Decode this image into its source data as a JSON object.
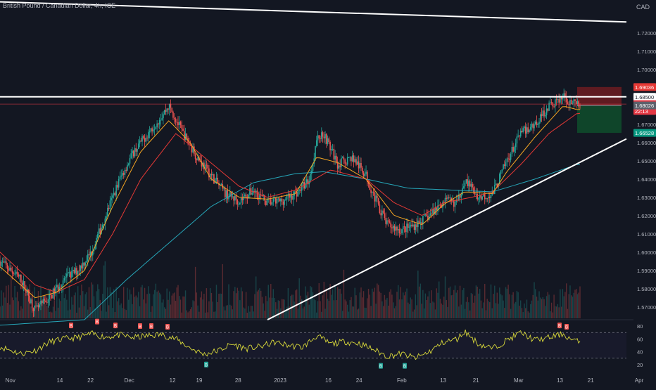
{
  "header": {
    "symbol_title": "British Pound / Canadian Dollar, 4h, ICE",
    "currency": "CAD"
  },
  "colors": {
    "background": "#131722",
    "text": "#b2b5be",
    "grid": "#1e222d",
    "up_candle": "#26a69a",
    "down_candle": "#ef5350",
    "ema_fast": "#f5a623",
    "ema_mid": "#e53935",
    "ema_slow": "#26a6b8",
    "trendline": "#ffffff",
    "rsi": "#d9d93a",
    "stop_zone": "#7a1e22",
    "target_zone": "#0f4d2c"
  },
  "chart_data": [
    {
      "type": "candlestick",
      "title": "British Pound / Canadian Dollar, 4h, ICE",
      "y_unit": "CAD",
      "ylim": [
        1.563,
        1.738
      ],
      "x_labels": [
        "Nov",
        "14",
        "22",
        "Dec",
        "12",
        "19",
        "28",
        "2023",
        "16",
        "24",
        "Feb",
        "13",
        "21",
        "Mar",
        "13",
        "21",
        "Apr"
      ],
      "y_ticks": [
        "1.57000",
        "1.58000",
        "1.59000",
        "1.60000",
        "1.61000",
        "1.62000",
        "1.63000",
        "1.64000",
        "1.65000",
        "1.66000",
        "1.67000",
        "1.68000",
        "1.69000",
        "1.70000",
        "1.71000",
        "1.72000",
        "1.73000"
      ],
      "price_labels": [
        {
          "text": "1.69036",
          "value": 1.69036,
          "color": "#e53935"
        },
        {
          "text": "1.68500",
          "value": 1.685,
          "color": "#ffffff"
        },
        {
          "text": "1.68104",
          "value": 1.68104,
          "color": "#e53945"
        },
        {
          "text": "22:13",
          "value": 1.6773,
          "color": "#e53945"
        },
        {
          "text": "1.68026",
          "value": 1.68026,
          "color": "#5d606b"
        },
        {
          "text": "1.66528",
          "value": 1.66528,
          "color": "#089981"
        }
      ],
      "price_anchors": [
        [
          0,
          1.595
        ],
        [
          3,
          1.585
        ],
        [
          5,
          1.568
        ],
        [
          7,
          1.575
        ],
        [
          9,
          1.585
        ],
        [
          11,
          1.59
        ],
        [
          13,
          1.6
        ],
        [
          15,
          1.62
        ],
        [
          17,
          1.64
        ],
        [
          19,
          1.655
        ],
        [
          21,
          1.665
        ],
        [
          23,
          1.675
        ],
        [
          24,
          1.68
        ],
        [
          26,
          1.665
        ],
        [
          28,
          1.652
        ],
        [
          30,
          1.642
        ],
        [
          32,
          1.632
        ],
        [
          34,
          1.628
        ],
        [
          36,
          1.634
        ],
        [
          38,
          1.627
        ],
        [
          40,
          1.628
        ],
        [
          42,
          1.632
        ],
        [
          44,
          1.64
        ],
        [
          45,
          1.662
        ],
        [
          46,
          1.665
        ],
        [
          48,
          1.648
        ],
        [
          50,
          1.652
        ],
        [
          52,
          1.642
        ],
        [
          53,
          1.632
        ],
        [
          55,
          1.615
        ],
        [
          57,
          1.612
        ],
        [
          59,
          1.615
        ],
        [
          61,
          1.62
        ],
        [
          63,
          1.628
        ],
        [
          65,
          1.627
        ],
        [
          66,
          1.64
        ],
        [
          68,
          1.63
        ],
        [
          70,
          1.632
        ],
        [
          72,
          1.65
        ],
        [
          74,
          1.665
        ],
        [
          76,
          1.67
        ],
        [
          78,
          1.68
        ],
        [
          80,
          1.685
        ],
        [
          82,
          1.68
        ]
      ],
      "ema_fast_anchors": [
        [
          0,
          1.592
        ],
        [
          5,
          1.575
        ],
        [
          8,
          1.578
        ],
        [
          12,
          1.59
        ],
        [
          16,
          1.625
        ],
        [
          20,
          1.655
        ],
        [
          24,
          1.672
        ],
        [
          27,
          1.66
        ],
        [
          30,
          1.64
        ],
        [
          34,
          1.63
        ],
        [
          38,
          1.629
        ],
        [
          42,
          1.632
        ],
        [
          45,
          1.652
        ],
        [
          48,
          1.649
        ],
        [
          52,
          1.64
        ],
        [
          56,
          1.62
        ],
        [
          60,
          1.615
        ],
        [
          63,
          1.626
        ],
        [
          66,
          1.633
        ],
        [
          70,
          1.632
        ],
        [
          72,
          1.644
        ],
        [
          76,
          1.663
        ],
        [
          80,
          1.68
        ],
        [
          82,
          1.678
        ]
      ],
      "ema_mid_anchors": [
        [
          0,
          1.6
        ],
        [
          5,
          1.582
        ],
        [
          8,
          1.578
        ],
        [
          12,
          1.585
        ],
        [
          16,
          1.61
        ],
        [
          20,
          1.64
        ],
        [
          25,
          1.665
        ],
        [
          29,
          1.652
        ],
        [
          34,
          1.636
        ],
        [
          38,
          1.63
        ],
        [
          42,
          1.634
        ],
        [
          47,
          1.645
        ],
        [
          52,
          1.64
        ],
        [
          56,
          1.627
        ],
        [
          60,
          1.62
        ],
        [
          63,
          1.627
        ],
        [
          67,
          1.63
        ],
        [
          70,
          1.633
        ],
        [
          74,
          1.648
        ],
        [
          78,
          1.665
        ],
        [
          82,
          1.676
        ]
      ],
      "ema_slow_anchors": [
        [
          0,
          1.56
        ],
        [
          12,
          1.563
        ],
        [
          18,
          1.585
        ],
        [
          24,
          1.605
        ],
        [
          30,
          1.625
        ],
        [
          36,
          1.638
        ],
        [
          42,
          1.643
        ],
        [
          46,
          1.644
        ],
        [
          52,
          1.64
        ],
        [
          58,
          1.635
        ],
        [
          64,
          1.634
        ],
        [
          70,
          1.633
        ],
        [
          76,
          1.64
        ],
        [
          82,
          1.648
        ]
      ],
      "trendlines": [
        {
          "name": "upper-descending",
          "from": [
            0,
            1.737
          ],
          "to": [
            89,
            1.726
          ]
        },
        {
          "name": "resistance",
          "from": [
            0,
            1.685
          ],
          "to": [
            89,
            1.685
          ]
        },
        {
          "name": "rising-support",
          "from": [
            38,
            1.563
          ],
          "to": [
            89,
            1.662
          ]
        }
      ],
      "position_tool": {
        "entry": 1.68026,
        "stop": 1.69036,
        "target": 1.66528,
        "from_x": 82,
        "to_x": 88.3
      }
    },
    {
      "type": "line",
      "title": "",
      "ylim": [
        10,
        90
      ],
      "y_ticks": [
        "20",
        "40",
        "60",
        "80"
      ],
      "bands": [
        30,
        70
      ],
      "rsi_anchors": [
        [
          0,
          48
        ],
        [
          3,
          37
        ],
        [
          5,
          42
        ],
        [
          7,
          55
        ],
        [
          9,
          60
        ],
        [
          11,
          62
        ],
        [
          13,
          68
        ],
        [
          15,
          63
        ],
        [
          17,
          66
        ],
        [
          19,
          62
        ],
        [
          21,
          65
        ],
        [
          23,
          67
        ],
        [
          25,
          60
        ],
        [
          27,
          46
        ],
        [
          29,
          36
        ],
        [
          31,
          42
        ],
        [
          33,
          52
        ],
        [
          35,
          45
        ],
        [
          37,
          48
        ],
        [
          39,
          55
        ],
        [
          41,
          50
        ],
        [
          43,
          47
        ],
        [
          45,
          65
        ],
        [
          47,
          52
        ],
        [
          49,
          56
        ],
        [
          51,
          53
        ],
        [
          53,
          44
        ],
        [
          55,
          33
        ],
        [
          57,
          37
        ],
        [
          59,
          30
        ],
        [
          61,
          40
        ],
        [
          63,
          55
        ],
        [
          65,
          60
        ],
        [
          66,
          72
        ],
        [
          68,
          52
        ],
        [
          70,
          45
        ],
        [
          72,
          58
        ],
        [
          74,
          70
        ],
        [
          76,
          58
        ],
        [
          78,
          62
        ],
        [
          80,
          68
        ],
        [
          81,
          60
        ],
        [
          82,
          56
        ]
      ],
      "markers": [
        {
          "label": "B",
          "x": 13.8,
          "value": 86,
          "kind": "bear"
        },
        {
          "label": "B",
          "x": 16.4,
          "value": 80,
          "kind": "bear"
        },
        {
          "label": "B",
          "x": 19.9,
          "value": 79,
          "kind": "bear"
        },
        {
          "label": "B",
          "x": 21.5,
          "value": 79,
          "kind": "bear"
        },
        {
          "label": "B",
          "x": 23.8,
          "value": 78,
          "kind": "bear"
        },
        {
          "label": "B",
          "x": 79.5,
          "value": 80,
          "kind": "bear"
        },
        {
          "label": "B",
          "x": 80.5,
          "value": 78,
          "kind": "bear"
        },
        {
          "label": "B",
          "x": 10.1,
          "value": 80,
          "kind": "bear"
        },
        {
          "label": "B",
          "x": 29.3,
          "value": 19,
          "kind": "bull"
        },
        {
          "label": "B",
          "x": 54.1,
          "value": 17,
          "kind": "bull"
        },
        {
          "label": "B",
          "x": 57.5,
          "value": 17,
          "kind": "bull"
        }
      ]
    }
  ]
}
